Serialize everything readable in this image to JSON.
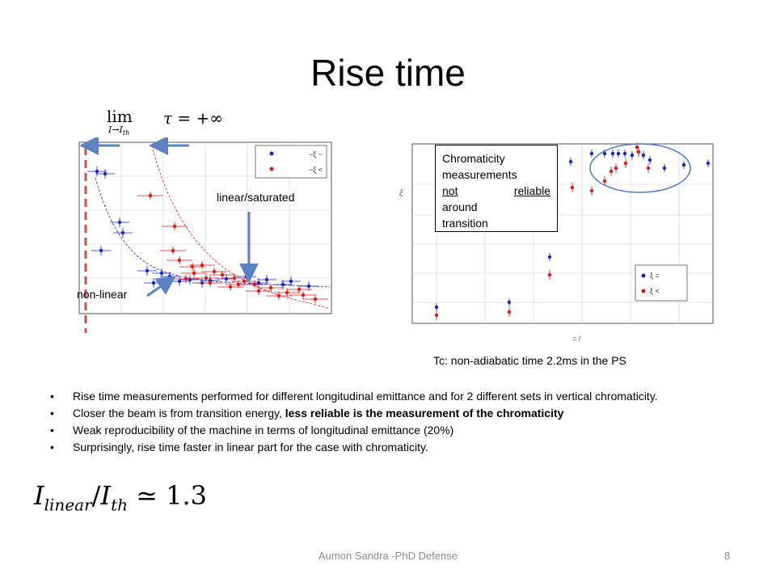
{
  "slide": {
    "title": "Rise time",
    "limit_formula": {
      "lim": "lim",
      "subscript": "I→I",
      "subscript_th": "th",
      "rest": "τ = +∞"
    },
    "left_plot": {
      "legend": [
        "−ξ ~",
        "−ξ <"
      ],
      "annotation_linear": "linear/saturated",
      "annotation_nonlinear": "non-linear",
      "colors": {
        "series1": "#1426c8",
        "series2": "#e01818",
        "arrow": "#5b83c4",
        "dashed_line": "#d0504c"
      }
    },
    "right_plot": {
      "annotation_box": {
        "line1": "Chromaticity",
        "line2": "measurements",
        "line3_left": "not",
        "line3_right": "reliable",
        "line4": "around",
        "line5": "transition"
      },
      "legend": [
        "ξ =",
        "ξ <"
      ],
      "y_axis_symbol": "ξ",
      "x_axis_label": "= /",
      "caption": "Tc: non-adiabatic time 2.2ms in the PS"
    },
    "bullets": [
      {
        "text": "Rise time measurements performed for different longitudinal emittance and for 2 different sets in vertical chromaticity.",
        "bold": ""
      },
      {
        "text": "Closer the beam is from transition energy, ",
        "bold": "less reliable is the measurement of the chromaticity"
      },
      {
        "text": "Weak reproducibility of the machine in terms of longitudinal emittance (20%)",
        "bold": ""
      },
      {
        "text": "Surprisingly, rise time faster in linear part for the case with chromaticity.",
        "bold": ""
      }
    ],
    "formula": {
      "I": "I",
      "sub_linear": "linear",
      "slash": "/",
      "I2": "I",
      "sub_th": "th",
      "rest": " ≃ 1.3"
    },
    "footer": "Aumon Sandra -PhD Defense",
    "page_number": "8"
  }
}
